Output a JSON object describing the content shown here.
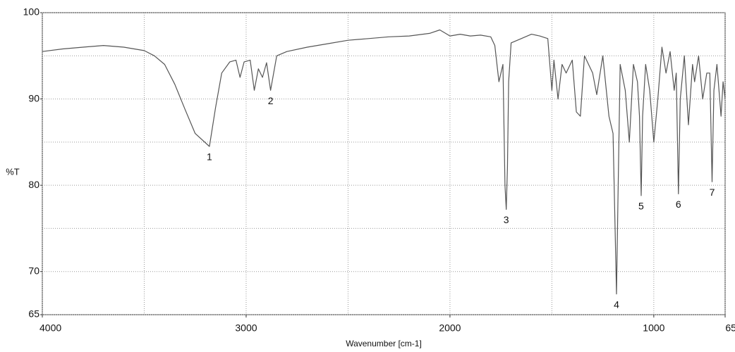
{
  "chart_data": {
    "type": "line",
    "ylabel": "%T",
    "xlabel": "Wavenumber [cm-1]",
    "color": "#555555",
    "x": [
      4000,
      3900,
      3800,
      3700,
      3600,
      3500,
      3450,
      3400,
      3350,
      3300,
      3250,
      3180,
      3150,
      3120,
      3080,
      3050,
      3030,
      3010,
      2980,
      2960,
      2940,
      2920,
      2900,
      2880,
      2850,
      2800,
      2700,
      2600,
      2500,
      2400,
      2300,
      2200,
      2100,
      2050,
      2000,
      1950,
      1900,
      1850,
      1800,
      1780,
      1760,
      1740,
      1730,
      1724,
      1718,
      1712,
      1700,
      1650,
      1600,
      1560,
      1520,
      1500,
      1490,
      1470,
      1450,
      1430,
      1400,
      1380,
      1360,
      1340,
      1300,
      1280,
      1250,
      1220,
      1200,
      1190,
      1183,
      1176,
      1165,
      1140,
      1120,
      1100,
      1080,
      1070,
      1062,
      1055,
      1040,
      1020,
      1000,
      980,
      960,
      940,
      920,
      900,
      890,
      879,
      870,
      850,
      830,
      810,
      800,
      780,
      760,
      740,
      725,
      714,
      705,
      690,
      670,
      660,
      650
    ],
    "values": [
      95.5,
      95.8,
      96,
      96.2,
      96,
      95.6,
      95,
      94,
      91.7,
      88.8,
      86,
      84.5,
      89,
      93,
      94.3,
      94.5,
      92.5,
      94.3,
      94.5,
      91,
      93.5,
      92.5,
      94.2,
      91,
      95,
      95.5,
      96,
      96.4,
      96.8,
      97,
      97.2,
      97.3,
      97.6,
      98,
      97.3,
      97.5,
      97.3,
      97.4,
      97.2,
      96.2,
      92,
      94,
      80,
      77.2,
      82,
      92,
      96.5,
      97,
      97.5,
      97.3,
      97,
      91,
      94.5,
      90,
      94,
      93,
      94.5,
      88.5,
      88,
      95,
      93,
      90.5,
      95,
      88,
      86,
      75,
      67.4,
      78,
      94,
      91,
      85,
      94,
      92,
      88,
      78.8,
      88,
      94,
      91,
      85,
      90,
      96,
      93,
      95.5,
      91,
      93,
      79,
      90,
      95,
      87,
      94,
      92,
      95,
      90,
      93,
      93,
      80.4,
      91,
      94,
      88,
      92,
      90
    ],
    "xlim": [
      4000,
      650
    ],
    "ylim": [
      65,
      100
    ],
    "xticks": [
      4000,
      3000,
      2000,
      1000,
      650
    ],
    "yticks": [
      65,
      70,
      80,
      90,
      100
    ],
    "minor_xticks": [
      3500,
      2500,
      1500
    ],
    "minor_yticks": [
      75,
      85,
      95
    ],
    "grid": true,
    "annotations": [
      {
        "text": "1",
        "x": 3180,
        "y": 84.5
      },
      {
        "text": "2",
        "x": 2880,
        "y": 91
      },
      {
        "text": "3",
        "x": 1724,
        "y": 77.2
      },
      {
        "text": "4",
        "x": 1183,
        "y": 67.4
      },
      {
        "text": "5",
        "x": 1062,
        "y": 78.8
      },
      {
        "text": "6",
        "x": 879,
        "y": 79
      },
      {
        "text": "7",
        "x": 714,
        "y": 80.4
      }
    ]
  }
}
